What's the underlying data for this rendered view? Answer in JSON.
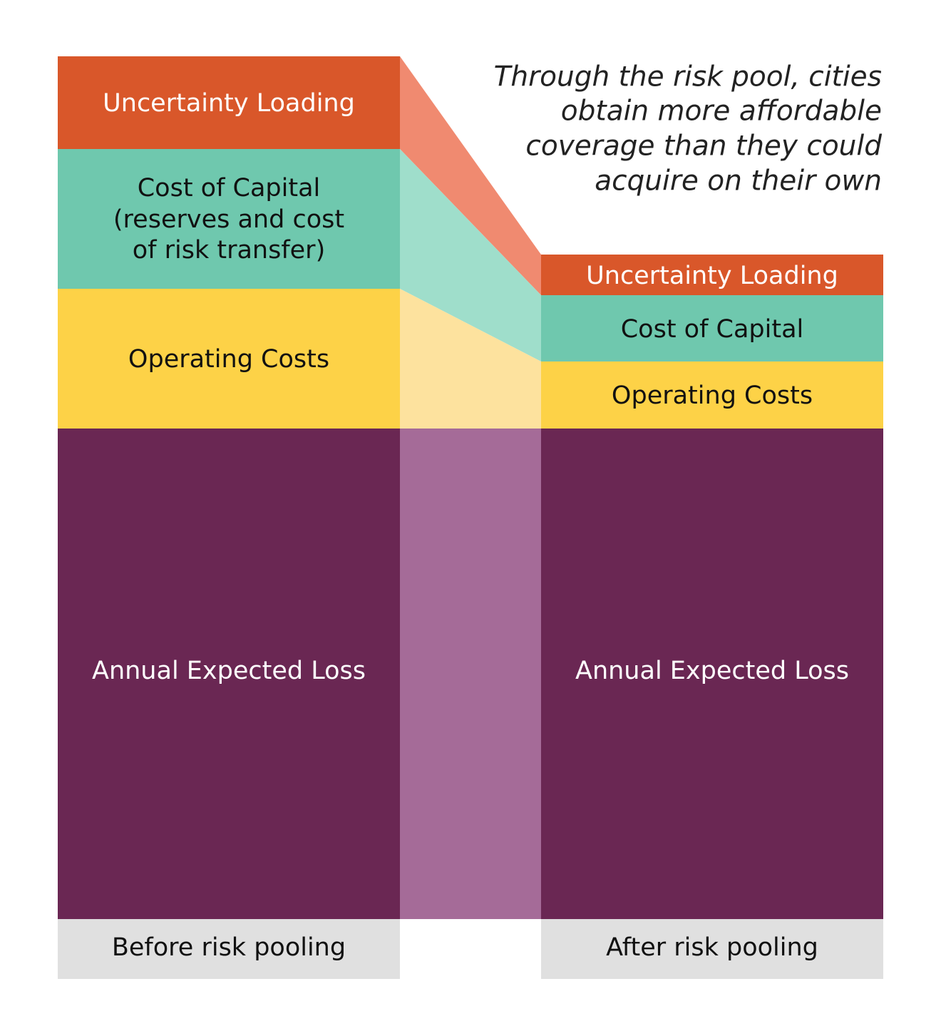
{
  "annotation": [
    "Through the risk pool, cities",
    "obtain more affordable",
    "coverage than they could",
    "acquire on their own"
  ],
  "before": {
    "label": "Before risk pooling",
    "segments": {
      "uncertainty": "Uncertainty Loading",
      "capital": [
        "Cost of Capital",
        "(reserves and cost",
        "of risk transfer)"
      ],
      "operating": "Operating Costs",
      "loss": "Annual Expected Loss"
    }
  },
  "after": {
    "label": "After risk pooling",
    "segments": {
      "uncertainty": "Uncertainty Loading",
      "capital": "Cost of Capital",
      "operating": "Operating Costs",
      "loss": "Annual Expected Loss"
    }
  }
}
